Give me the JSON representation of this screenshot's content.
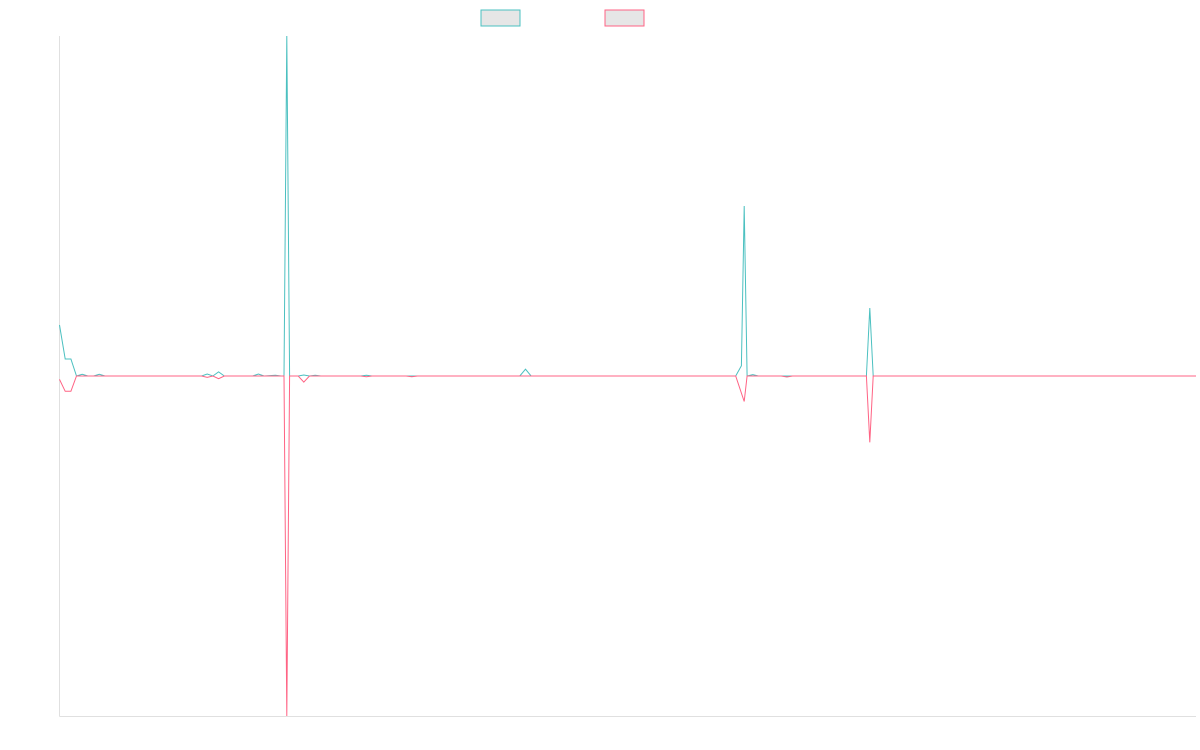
{
  "chart_data": {
    "type": "line",
    "title": "",
    "xlabel": "",
    "ylabel": "",
    "legend": {
      "placement": "top-center"
    },
    "grid": false,
    "ylim": [
      -100,
      100
    ],
    "x_count": 201,
    "series": [
      {
        "color": "#4bc0c0",
        "points": [
          [
            0,
            15
          ],
          [
            1,
            5
          ],
          [
            2,
            5
          ],
          [
            3,
            0
          ],
          [
            4,
            0.5
          ],
          [
            5,
            0
          ],
          [
            6,
            0
          ],
          [
            7,
            0.5
          ],
          [
            8,
            0
          ],
          [
            25,
            0
          ],
          [
            26,
            0.6
          ],
          [
            27,
            0
          ],
          [
            28,
            1.2
          ],
          [
            29,
            0
          ],
          [
            34,
            0
          ],
          [
            35,
            0.6
          ],
          [
            36,
            0
          ],
          [
            38,
            0.2
          ],
          [
            39,
            0
          ],
          [
            39.5,
            0
          ],
          [
            40,
            100
          ],
          [
            40.5,
            0
          ],
          [
            42,
            0
          ],
          [
            43,
            0.3
          ],
          [
            44,
            0
          ],
          [
            45,
            0.2
          ],
          [
            46,
            0
          ],
          [
            53,
            0
          ],
          [
            54,
            0.2
          ],
          [
            55,
            0
          ],
          [
            81,
            0
          ],
          [
            82,
            2
          ],
          [
            83,
            0
          ],
          [
            119,
            0
          ],
          [
            120,
            3
          ],
          [
            120.5,
            50
          ],
          [
            121,
            0
          ],
          [
            122,
            0.4
          ],
          [
            123,
            0
          ],
          [
            142,
            0
          ],
          [
            142.6,
            20
          ],
          [
            143.2,
            0
          ],
          [
            200,
            0
          ]
        ]
      },
      {
        "color": "#ff6384",
        "points": [
          [
            0,
            -1
          ],
          [
            1,
            -4.5
          ],
          [
            2,
            -4.5
          ],
          [
            3,
            0
          ],
          [
            5,
            0
          ],
          [
            25,
            0
          ],
          [
            26,
            -0.4
          ],
          [
            27,
            0
          ],
          [
            28,
            -0.8
          ],
          [
            29,
            0
          ],
          [
            39.5,
            0
          ],
          [
            40,
            -100
          ],
          [
            40.5,
            0
          ],
          [
            42,
            0
          ],
          [
            43,
            -1.8
          ],
          [
            44,
            0
          ],
          [
            53,
            0
          ],
          [
            54,
            -0.2
          ],
          [
            55,
            0
          ],
          [
            61,
            0
          ],
          [
            62,
            -0.2
          ],
          [
            63,
            0
          ],
          [
            119,
            0
          ],
          [
            120.5,
            -7.5
          ],
          [
            121,
            0
          ],
          [
            127,
            0
          ],
          [
            128,
            -0.3
          ],
          [
            129,
            0
          ],
          [
            142,
            0
          ],
          [
            142.6,
            -19.5
          ],
          [
            143.2,
            0
          ],
          [
            200,
            0
          ]
        ]
      }
    ]
  }
}
